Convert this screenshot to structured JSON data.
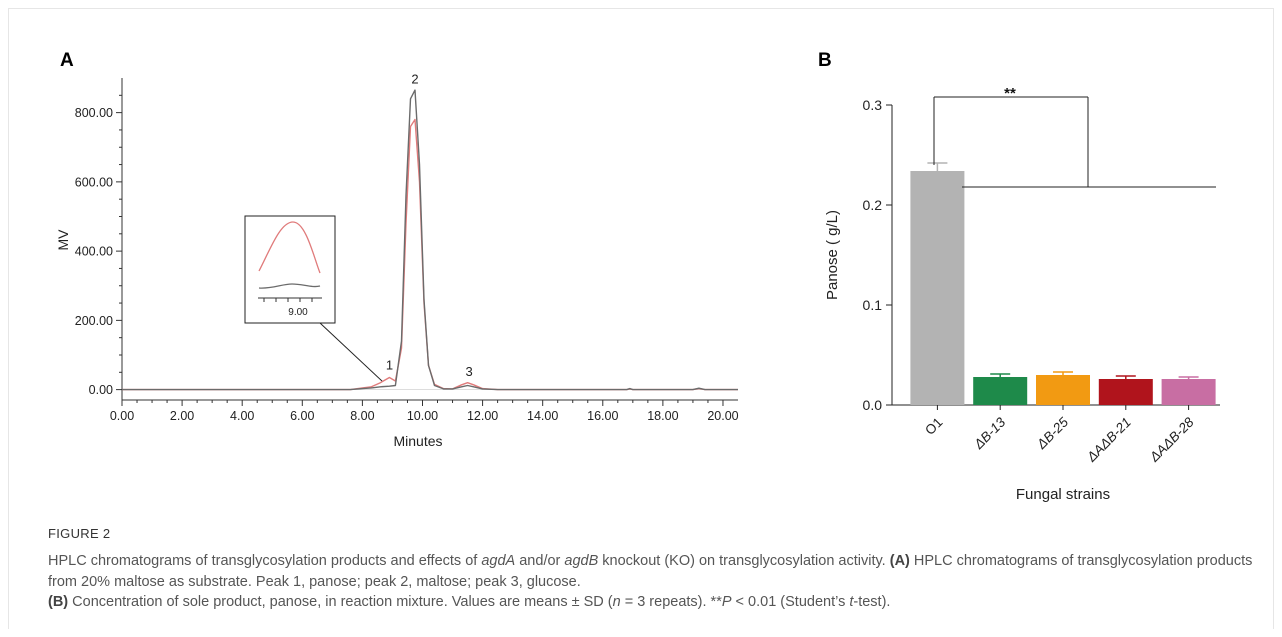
{
  "panel_a": {
    "letter": "A",
    "ylabel": "MV",
    "xlabel": "Minutes",
    "yticks": [
      "0.00",
      "200.00",
      "400.00",
      "600.00",
      "800.00"
    ],
    "xticks": [
      "0.00",
      "2.00",
      "4.00",
      "6.00",
      "8.00",
      "10.00",
      "12.00",
      "14.00",
      "16.00",
      "18.00",
      "20.00"
    ],
    "peak_labels": [
      "1",
      "2",
      "3"
    ],
    "inset_tick": "9.00"
  },
  "panel_b": {
    "letter": "B",
    "ylabel": "Panose ( g/L)",
    "xlabel": "Fungal strains",
    "yticks": [
      "0.0",
      "0.1",
      "0.2",
      "0.3"
    ],
    "significance": "**"
  },
  "caption": {
    "figure_label": "FIGURE 2",
    "line1_a": "HPLC chromatograms of transglycosylation products and effects of ",
    "gene_a": "agdA",
    "line1_b": " and/or ",
    "gene_b": "agdB",
    "line1_c": " knockout (KO) on transglycosylation activity. ",
    "ref_a": "(A)",
    "text_a": " HPLC chromatograms of transglycosylation products from 20% maltose as substrate. Peak 1, panose; peak 2, maltose; peak 3, glucose.",
    "ref_b": "(B)",
    "text_b1": " Concentration of sole product, panose, in reaction mixture. Values are means ± SD (",
    "n_var": "n",
    "text_b2": " = 3 repeats). **",
    "p_var": "P",
    "text_b3": " < 0.01 (Student’s ",
    "t_var": "t",
    "text_b4": "-test)."
  },
  "chart_data": [
    {
      "type": "line",
      "title": "",
      "xlabel": "Minutes",
      "ylabel": "MV",
      "xlim": [
        0,
        20.5
      ],
      "ylim": [
        -30,
        900
      ],
      "grid": false,
      "series": [
        {
          "color": "#e07b7b",
          "x": [
            0,
            7.6,
            8.0,
            8.3,
            8.6,
            8.9,
            9.1,
            9.3,
            9.45,
            9.6,
            9.75,
            9.9,
            10.05,
            10.2,
            10.4,
            10.7,
            11.0,
            11.3,
            11.5,
            11.7,
            12.0,
            12.5,
            16.8,
            16.9,
            17.0,
            19.0,
            19.2,
            19.4,
            20.5
          ],
          "y": [
            0,
            0,
            5,
            8,
            20,
            35,
            25,
            120,
            480,
            760,
            780,
            600,
            250,
            70,
            15,
            3,
            2,
            14,
            20,
            14,
            3,
            0,
            0,
            2,
            0,
            0,
            3,
            0,
            0
          ]
        },
        {
          "color": "#6b6b6b",
          "x": [
            0,
            7.6,
            8.0,
            8.3,
            8.6,
            8.9,
            9.1,
            9.3,
            9.45,
            9.6,
            9.75,
            9.9,
            10.05,
            10.2,
            10.4,
            10.7,
            11.0,
            11.3,
            11.5,
            11.7,
            12.0,
            12.5,
            16.8,
            16.9,
            17.0,
            19.0,
            19.2,
            19.4,
            20.5
          ],
          "y": [
            0,
            0,
            3,
            5,
            8,
            10,
            12,
            140,
            560,
            840,
            865,
            650,
            260,
            70,
            12,
            2,
            2,
            8,
            12,
            8,
            2,
            0,
            0,
            3,
            0,
            0,
            4,
            0,
            0
          ]
        }
      ],
      "annotations": [
        "1",
        "2",
        "3"
      ]
    },
    {
      "type": "bar",
      "title": "",
      "xlabel": "Fungal strains",
      "ylabel": "Panose ( g/L)",
      "ylim": [
        0,
        0.3
      ],
      "categories": [
        "O1",
        "ΔB-13",
        "ΔB-25",
        "ΔAΔB-21",
        "ΔAΔB-28"
      ],
      "values": [
        0.234,
        0.028,
        0.03,
        0.026,
        0.026
      ],
      "errors": [
        0.008,
        0.003,
        0.003,
        0.003,
        0.002
      ],
      "colors": [
        "#b3b3b3",
        "#1e8a4a",
        "#f29a12",
        "#b0141c",
        "#c86ea3"
      ],
      "annotations": [
        "**"
      ]
    }
  ]
}
